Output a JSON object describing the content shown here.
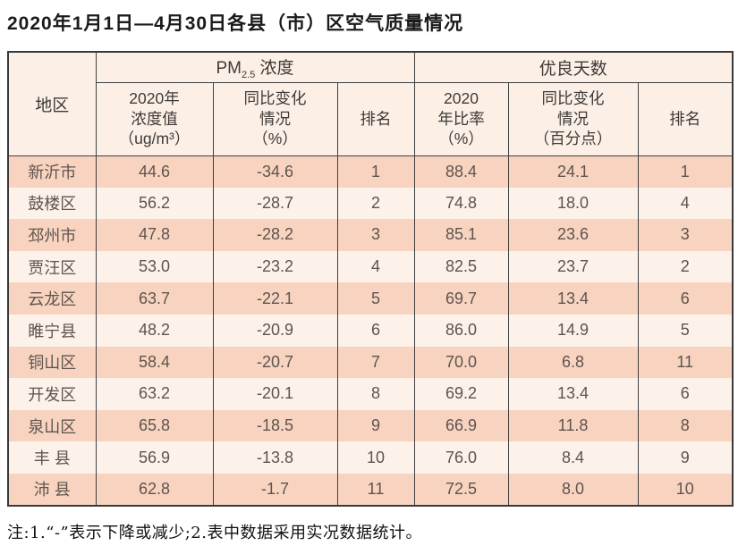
{
  "title": "2020年1月1日—4月30日各县（市）区空气质量情况",
  "note": "注:1.“-”表示下降或减少;2.表中数据采用实况数据统计。",
  "chart_data": {
    "type": "table",
    "title": "2020年1月1日—4月30日各县（市）区空气质量情况",
    "header": {
      "region": "地区",
      "pm25_group": {
        "prefix": "PM",
        "sub": "2.5",
        "suffix": " 浓度"
      },
      "good_days_group": "优良天数",
      "sub_columns": {
        "pm_value": "2020年\n浓度值\n（ug/m³）",
        "pm_change": "同比变化\n情况\n（%）",
        "pm_rank": "排名",
        "good_ratio": "2020\n年比率\n（%）",
        "ratio_change": "同比变化\n情况\n（百分点）",
        "ratio_rank": "排名"
      }
    },
    "column_order": [
      "region",
      "pm_value",
      "pm_change",
      "pm_rank",
      "good_ratio",
      "ratio_change",
      "ratio_rank"
    ],
    "rows": [
      {
        "region": "新沂市",
        "pm_value": "44.6",
        "pm_change": "-34.6",
        "pm_rank": "1",
        "good_ratio": "88.4",
        "ratio_change": "24.1",
        "ratio_rank": "1"
      },
      {
        "region": "鼓楼区",
        "pm_value": "56.2",
        "pm_change": "-28.7",
        "pm_rank": "2",
        "good_ratio": "74.8",
        "ratio_change": "18.0",
        "ratio_rank": "4"
      },
      {
        "region": "邳州市",
        "pm_value": "47.8",
        "pm_change": "-28.2",
        "pm_rank": "3",
        "good_ratio": "85.1",
        "ratio_change": "23.6",
        "ratio_rank": "3"
      },
      {
        "region": "贾汪区",
        "pm_value": "53.0",
        "pm_change": "-23.2",
        "pm_rank": "4",
        "good_ratio": "82.5",
        "ratio_change": "23.7",
        "ratio_rank": "2"
      },
      {
        "region": "云龙区",
        "pm_value": "63.7",
        "pm_change": "-22.1",
        "pm_rank": "5",
        "good_ratio": "69.7",
        "ratio_change": "13.4",
        "ratio_rank": "6"
      },
      {
        "region": "睢宁县",
        "pm_value": "48.2",
        "pm_change": "-20.9",
        "pm_rank": "6",
        "good_ratio": "86.0",
        "ratio_change": "14.9",
        "ratio_rank": "5"
      },
      {
        "region": "铜山区",
        "pm_value": "58.4",
        "pm_change": "-20.7",
        "pm_rank": "7",
        "good_ratio": "70.0",
        "ratio_change": "6.8",
        "ratio_rank": "11"
      },
      {
        "region": "开发区",
        "pm_value": "63.2",
        "pm_change": "-20.1",
        "pm_rank": "8",
        "good_ratio": "69.2",
        "ratio_change": "13.4",
        "ratio_rank": "6"
      },
      {
        "region": "泉山区",
        "pm_value": "65.8",
        "pm_change": "-18.5",
        "pm_rank": "9",
        "good_ratio": "66.9",
        "ratio_change": "11.8",
        "ratio_rank": "8"
      },
      {
        "region": "丰 县",
        "pm_value": "56.9",
        "pm_change": "-13.8",
        "pm_rank": "10",
        "good_ratio": "76.0",
        "ratio_change": "8.4",
        "ratio_rank": "9"
      },
      {
        "region": "沛 县",
        "pm_value": "62.8",
        "pm_change": "-1.7",
        "pm_rank": "11",
        "good_ratio": "72.5",
        "ratio_change": "8.0",
        "ratio_rank": "10"
      }
    ],
    "note": "注:1.“-”表示下降或减少;2.表中数据采用实况数据统计。",
    "colors": {
      "row_odd": "#f8d4c0",
      "row_even": "#fdf2ea",
      "header_bg": "#fcf0e6",
      "border": "#3f3f3f",
      "data_text": "#5e544e",
      "title_text": "#1a1a1a"
    }
  }
}
